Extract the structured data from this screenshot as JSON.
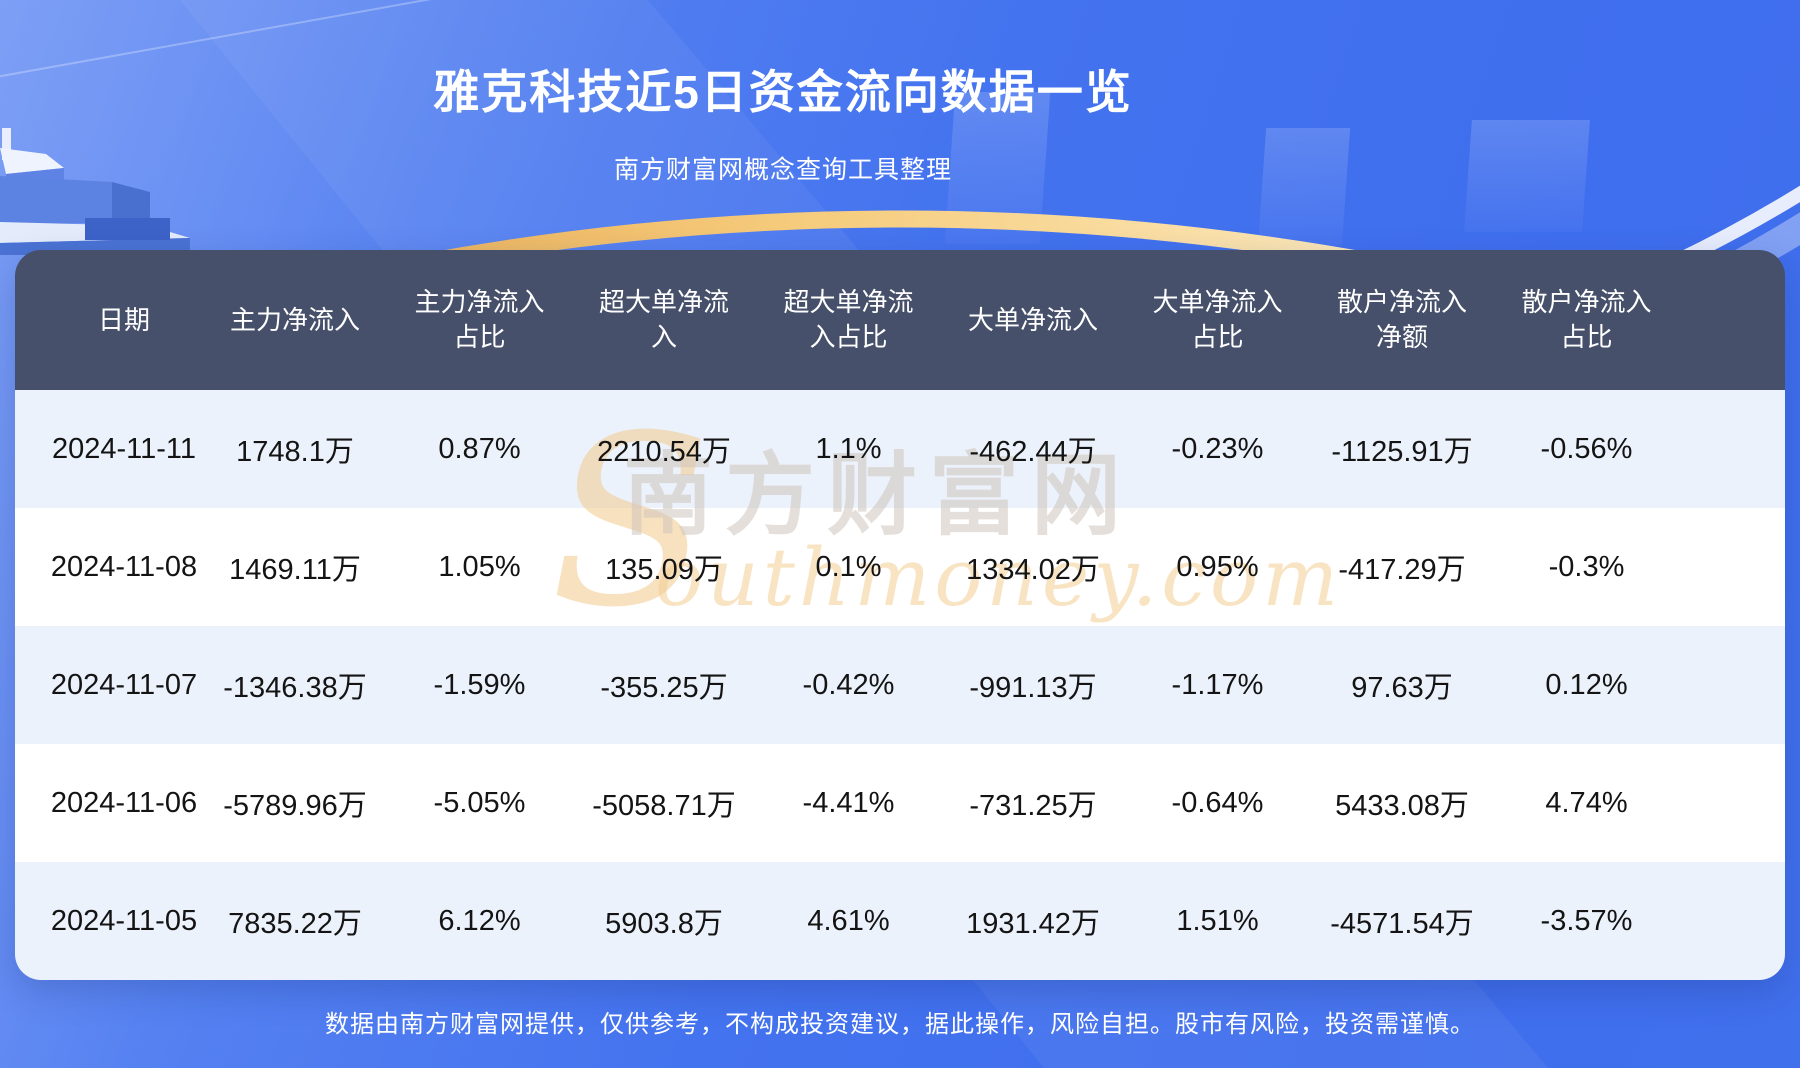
{
  "chart_data": {
    "type": "table",
    "title": "雅克科技近5日资金流向数据一览",
    "subtitle": "南方财富网概念查询工具整理",
    "columns": [
      "日期",
      "主力净流入",
      "主力净流入占比",
      "超大单净流入",
      "超大单净流入占比",
      "大单净流入",
      "大单净流入占比",
      "散户净流入净额",
      "散户净流入占比"
    ],
    "header_display": [
      "日期",
      "主力净流入",
      "主力净流入\n占比",
      "超大单净流\n入",
      "超大单净流\n入占比",
      "大单净流入",
      "大单净流入\n占比",
      "散户净流入\n净额",
      "散户净流入\n占比"
    ],
    "rows": [
      [
        "2024-11-11",
        "1748.1万",
        "0.87%",
        "2210.54万",
        "1.1%",
        "-462.44万",
        "-0.23%",
        "-1125.91万",
        "-0.56%"
      ],
      [
        "2024-11-08",
        "1469.11万",
        "1.05%",
        "135.09万",
        "0.1%",
        "1334.02万",
        "0.95%",
        "-417.29万",
        "-0.3%"
      ],
      [
        "2024-11-07",
        "-1346.38万",
        "-1.59%",
        "-355.25万",
        "-0.42%",
        "-991.13万",
        "-1.17%",
        "97.63万",
        "0.12%"
      ],
      [
        "2024-11-06",
        "-5789.96万",
        "-5.05%",
        "-5058.71万",
        "-4.41%",
        "-731.25万",
        "-0.64%",
        "5433.08万",
        "4.74%"
      ],
      [
        "2024-11-05",
        "7835.22万",
        "6.12%",
        "5903.8万",
        "4.61%",
        "1931.42万",
        "1.51%",
        "-4571.54万",
        "-3.57%"
      ]
    ],
    "footnote": "数据由南方财富网提供，仅供参考，不构成投资建议，据此操作，风险自担。股市有风险，投资需谨慎。",
    "layout_hints": {
      "grid": false,
      "legend": "none",
      "header_position": "top"
    }
  },
  "watermark": {
    "s": "S",
    "cn": "南方财富网",
    "en": "outhmoney.com"
  },
  "colors": {
    "background_blue": "#4473ef",
    "header_bg": "#46506a",
    "row_alt_blue": "#ecf2fb",
    "row_white": "#ffffff",
    "gold_arc": "#f6cd7f",
    "text_dark": "#141414",
    "text_white": "#ffffff"
  }
}
